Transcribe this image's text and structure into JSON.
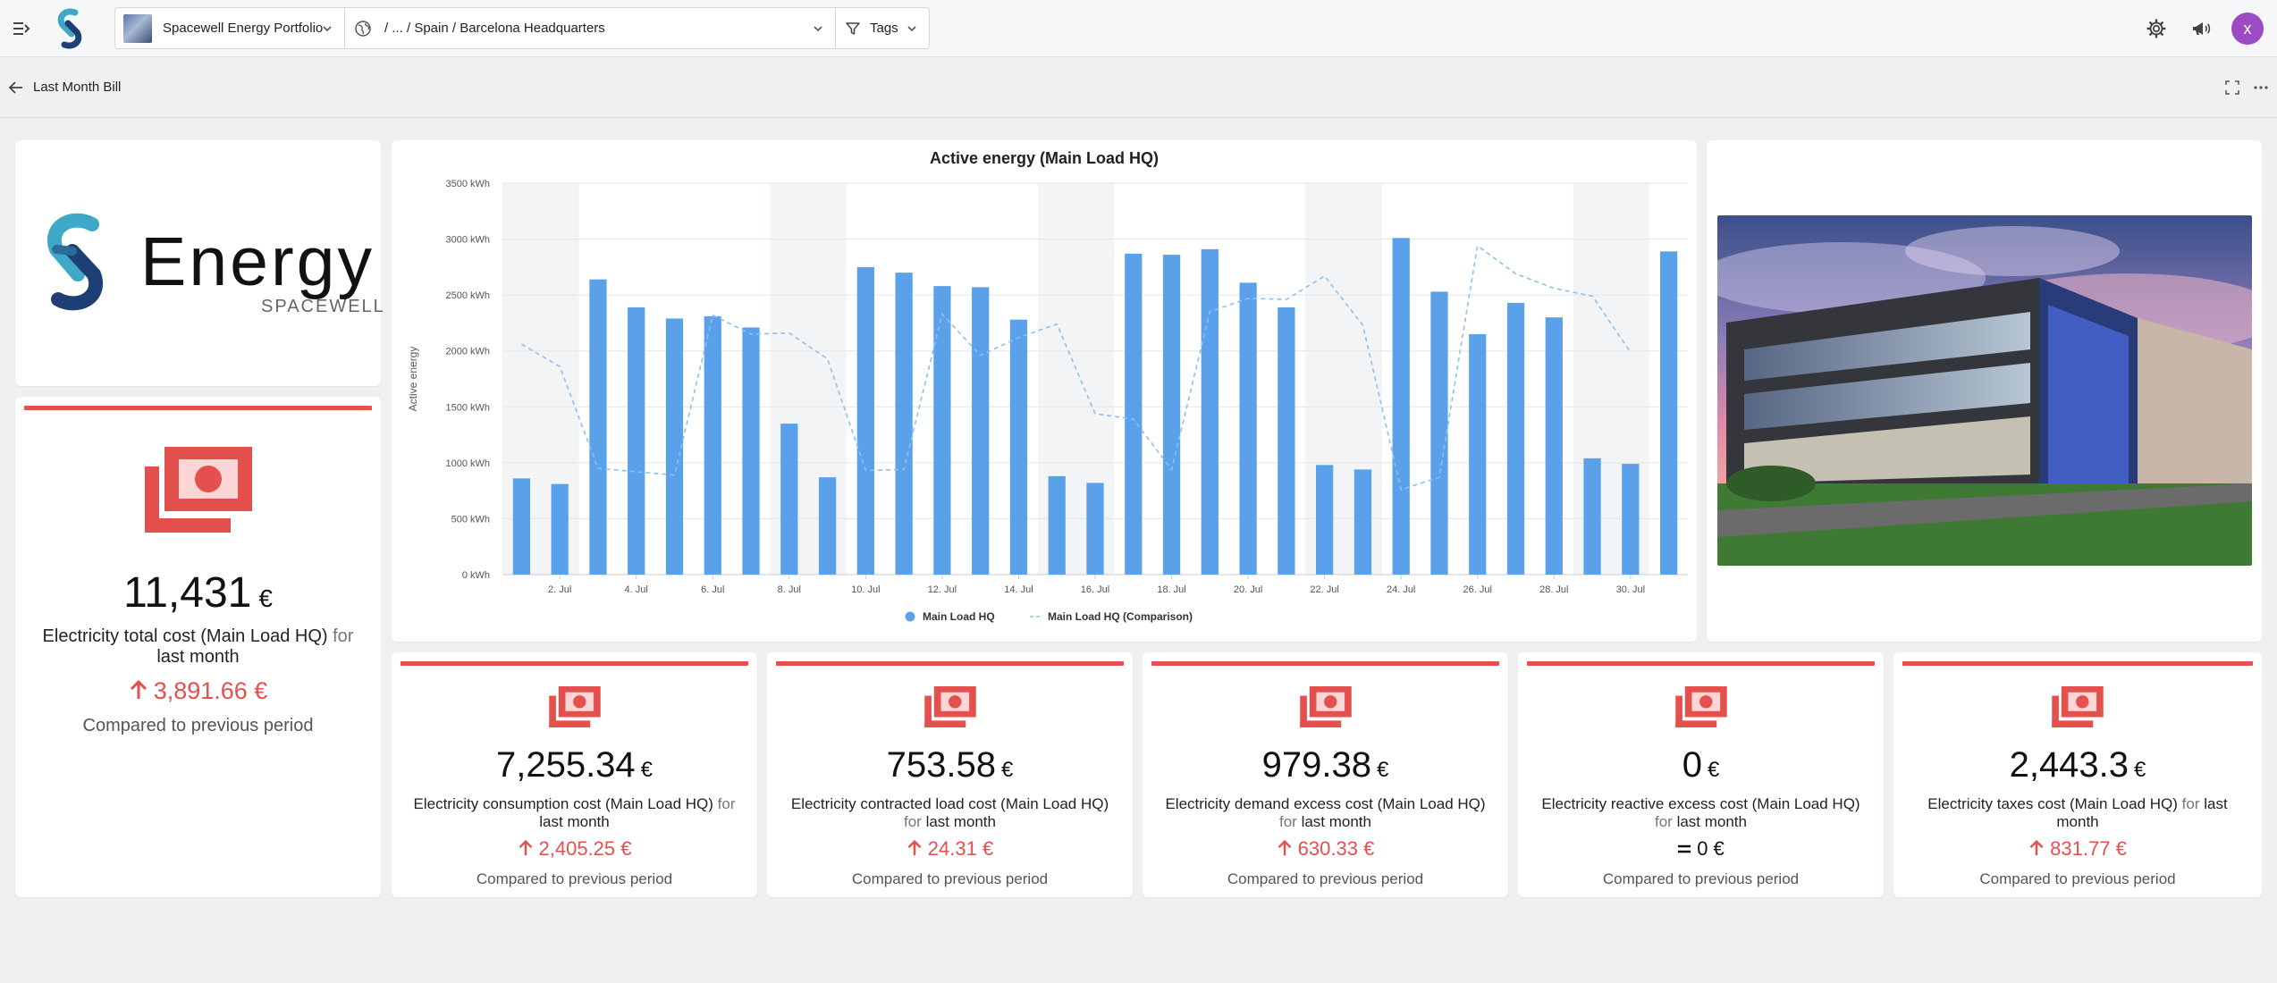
{
  "header": {
    "portfolio": "Spacewell Energy Portfolio",
    "location": "/ ... / Spain / Barcelona Headquarters",
    "tags": "Tags",
    "avatar": "x",
    "icons": [
      "menu-expand-icon",
      "settings-gear-icon",
      "megaphone-icon"
    ]
  },
  "subheader": {
    "title": "Last Month Bill",
    "icons": [
      "back-arrow-icon",
      "fullscreen-icon",
      "more-options-icon"
    ]
  },
  "logo": {
    "word": "Energy",
    "sub": "SPACEWELL"
  },
  "colors": {
    "accent_red": "#e4504d",
    "bar_blue": "#5aa1ea",
    "comparison_blue": "#8cc0f2"
  },
  "total": {
    "value": "11,431",
    "currency": "€",
    "label_main": "Electricity total cost (Main Load HQ)",
    "label_for": "for",
    "label_period": "last month",
    "delta": "3,891.66 €",
    "compare": "Compared to previous period"
  },
  "chart_data": {
    "type": "bar",
    "title": "Active energy (Main Load HQ)",
    "ylabel": "Active energy",
    "ylim": [
      0,
      3500
    ],
    "ytick_labels": [
      "0 kWh",
      "500 kWh",
      "1000 kWh",
      "1500 kWh",
      "2000 kWh",
      "2500 kWh",
      "3000 kWh",
      "3500 kWh"
    ],
    "xtick_labels": [
      "2. Jul",
      "4. Jul",
      "6. Jul",
      "8. Jul",
      "10. Jul",
      "12. Jul",
      "14. Jul",
      "16. Jul",
      "18. Jul",
      "20. Jul",
      "22. Jul",
      "24. Jul",
      "26. Jul",
      "28. Jul",
      "30. Jul"
    ],
    "days": [
      1,
      2,
      3,
      4,
      5,
      6,
      7,
      8,
      9,
      10,
      11,
      12,
      13,
      14,
      15,
      16,
      17,
      18,
      19,
      20,
      21,
      22,
      23,
      24,
      25,
      26,
      27,
      28,
      29,
      30,
      31
    ],
    "series": [
      {
        "name": "Main Load HQ",
        "values": [
          860,
          810,
          2640,
          2390,
          2290,
          2310,
          2210,
          1350,
          870,
          2750,
          2700,
          2580,
          2570,
          2280,
          880,
          820,
          2870,
          2860,
          2910,
          2610,
          2390,
          980,
          940,
          3010,
          2530,
          2150,
          2430,
          2300,
          1040,
          990,
          2890
        ]
      },
      {
        "name": "Main Load HQ (Comparison)",
        "values": [
          2060,
          1860,
          950,
          920,
          890,
          2320,
          2150,
          2160,
          1930,
          930,
          940,
          2330,
          1960,
          2120,
          2240,
          1440,
          1390,
          940,
          2350,
          2470,
          2460,
          2670,
          2230,
          760,
          870,
          2940,
          2690,
          2560,
          2490,
          1990,
          null
        ]
      }
    ],
    "legend": "bottom-center",
    "grid": true
  },
  "kpis": [
    {
      "value": "7,255.34",
      "currency": "€",
      "label_main": "Electricity consumption cost (Main Load HQ)",
      "label_for": "for",
      "label_period": "last month",
      "delta": "2,405.25 €",
      "direction": "up",
      "compare": "Compared to previous period"
    },
    {
      "value": "753.58",
      "currency": "€",
      "label_main": "Electricity contracted load cost (Main Load HQ)",
      "label_for": "for",
      "label_period": "last month",
      "delta": "24.31 €",
      "direction": "up",
      "compare": "Compared to previous period"
    },
    {
      "value": "979.38",
      "currency": "€",
      "label_main": "Electricity demand excess cost (Main Load HQ)",
      "label_for": "for",
      "label_period": "last month",
      "delta": "630.33 €",
      "direction": "up",
      "compare": "Compared to previous period"
    },
    {
      "value": "0",
      "currency": "€",
      "label_main": "Electricity reactive excess cost (Main Load HQ)",
      "label_for": "for",
      "label_period": "last month",
      "delta": "0 €",
      "direction": "equal",
      "compare": "Compared to previous period"
    },
    {
      "value": "2,443.3",
      "currency": "€",
      "label_main": "Electricity taxes cost (Main Load HQ)",
      "label_for": "for",
      "label_period": "last month",
      "delta": "831.77 €",
      "direction": "up",
      "compare": "Compared to previous period"
    }
  ]
}
